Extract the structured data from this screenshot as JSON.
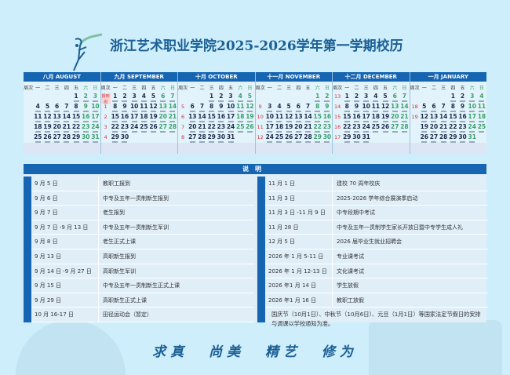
{
  "title": "浙江艺术职业学院2025-2026学年第一学期校历",
  "weekday_header": [
    "周次",
    "一",
    "二",
    "三",
    "四",
    "五",
    "六",
    "日"
  ],
  "colors": {
    "header_blue": "#1565b2",
    "weekend_green": "#3aa06a",
    "week_red": "#d2333b",
    "title_blue": "#1c5f95"
  },
  "months": [
    {
      "label": "八月 AUGUST",
      "first_weekday": 4,
      "days": 31,
      "weeks": [
        "",
        "",
        "",
        "",
        ""
      ]
    },
    {
      "label": "九月 SEPTEMBER",
      "first_weekday": 0,
      "days": 30,
      "weeks": [
        "报到周",
        "1",
        "2",
        "3",
        "4"
      ]
    },
    {
      "label": "十月 OCTOBER",
      "first_weekday": 2,
      "days": 31,
      "weeks": [
        "",
        "5",
        "6",
        "7",
        "8"
      ]
    },
    {
      "label": "十一月 NOVEMBER",
      "first_weekday": 5,
      "days": 30,
      "weeks": [
        "",
        "9",
        "10",
        "11",
        "12"
      ]
    },
    {
      "label": "十二月 DECEMBER",
      "first_weekday": 0,
      "days": 31,
      "weeks": [
        "13",
        "14",
        "15",
        "16",
        "17"
      ]
    },
    {
      "label": "一月 JANUARY",
      "first_weekday": 3,
      "days": 31,
      "weeks": [
        "",
        "18",
        "19",
        "",
        ""
      ]
    }
  ],
  "notes": {
    "header": "说明",
    "left": [
      {
        "date": "9 月 5 日",
        "event": "教职工报到"
      },
      {
        "date": "9 月 6 日",
        "event": "中专及五年一贯制新生报到"
      },
      {
        "date": "9 月 7 日",
        "event": "老生报到"
      },
      {
        "date": "9 月 7 日 -9 月 13 日",
        "event": "中专及五年一贯制新生军训"
      },
      {
        "date": "9 月 8 日",
        "event": "老生正式上课"
      },
      {
        "date": "9 月 13 日",
        "event": "高职新生报到"
      },
      {
        "date": "9 月 14 日 -9 月 27 日",
        "event": "高职新生军训"
      },
      {
        "date": "9 月 15 日",
        "event": "中专及五年一贯制新生正式上课"
      },
      {
        "date": "9 月 29 日",
        "event": "高职新生正式上课"
      },
      {
        "date": "10 月 16-17 日",
        "event": "田径运动会（暂定）"
      }
    ],
    "right": [
      {
        "date": "11 月 1 日",
        "event": "建校 70 周年校庆"
      },
      {
        "date": "11 月 3 日",
        "event": "2025-2026 学年综合展演季启动"
      },
      {
        "date": "11 月 3 日 -11 月 9 日",
        "event": "中专段期中考试"
      },
      {
        "date": "11 月 28 日",
        "event": "中专及五年一贯制学生家长开放日暨中专学生成人礼"
      },
      {
        "date": "12 月 5 日",
        "event": "2026 届毕业生就业招聘会"
      },
      {
        "date": "2026 年 1 月 5-11 日",
        "event": "专业课考试"
      },
      {
        "date": "2026 年 1 月 12-13 日",
        "event": "文化课考试"
      },
      {
        "date": "2026 年1 月 14 日",
        "event": "学生放假"
      },
      {
        "date": "2026 年1 月 16 日",
        "event": "教职工放假"
      }
    ],
    "footnote": "国庆节（10月1日）、中秋节（10月6日）、元旦（1月1日）等国家法定节假日的安排与调课以学校通知为准。"
  },
  "motto": "求真 尚美 精艺 修为"
}
